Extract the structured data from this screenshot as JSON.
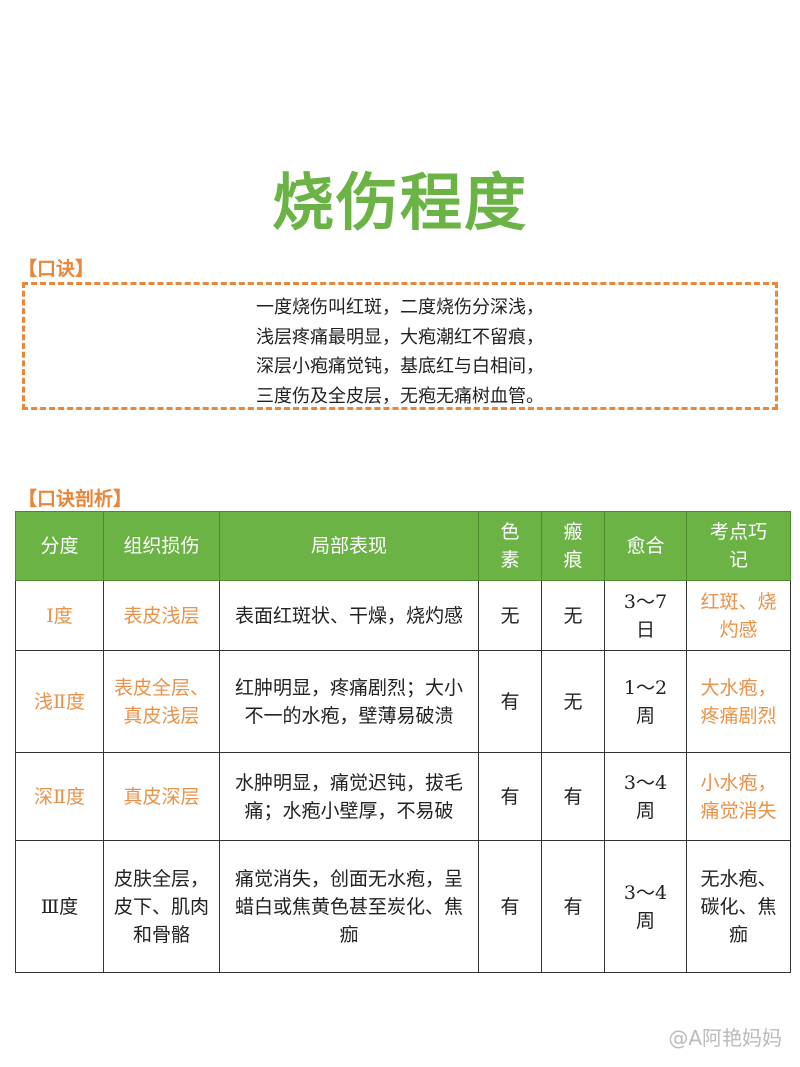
{
  "title": "烧伤程度",
  "rhyme": {
    "label": "【口诀】",
    "lines": [
      "一度烧伤叫红斑，二度烧伤分深浅，",
      "浅层疼痛最明显，大疱潮红不留痕，",
      "深层小疱痛觉钝，基底红与白相间，",
      "三度伤及全皮层，无疱无痛树血管。"
    ]
  },
  "analysis": {
    "label": "【口诀剖析】",
    "headers": [
      "分度",
      "组织损伤",
      "局部表现",
      "色素",
      "瘢痕",
      "愈合",
      "考点巧记"
    ],
    "rows": [
      [
        "Ⅰ度",
        "表皮浅层",
        "表面红斑状、干燥，烧灼感",
        "无",
        "无",
        "3～7日",
        "红斑、烧灼感"
      ],
      [
        "浅Ⅱ度",
        "表皮全层、真皮浅层",
        "红肿明显，疼痛剧烈；大小不一的水疱，壁薄易破溃",
        "有",
        "无",
        "1～2周",
        "大水疱，疼痛剧烈"
      ],
      [
        "深Ⅱ度",
        "真皮深层",
        "水肿明显，痛觉迟钝，拔毛痛；水疱小壁厚，不易破",
        "有",
        "有",
        "3～4周",
        "小水疱，痛觉消失"
      ],
      [
        "Ⅲ度",
        "皮肤全层，皮下、肌肉和骨骼",
        "痛觉消失，创面无水疱，呈蜡白或焦黄色甚至炭化、焦痂",
        "有",
        "有",
        "3～4周",
        "无水疱、碳化、焦痂"
      ]
    ],
    "orange_rows": [
      0,
      1,
      2
    ]
  },
  "watermark": "@A阿艳妈妈",
  "colors": {
    "green": "#6ab344",
    "orange": "#e8873a"
  }
}
